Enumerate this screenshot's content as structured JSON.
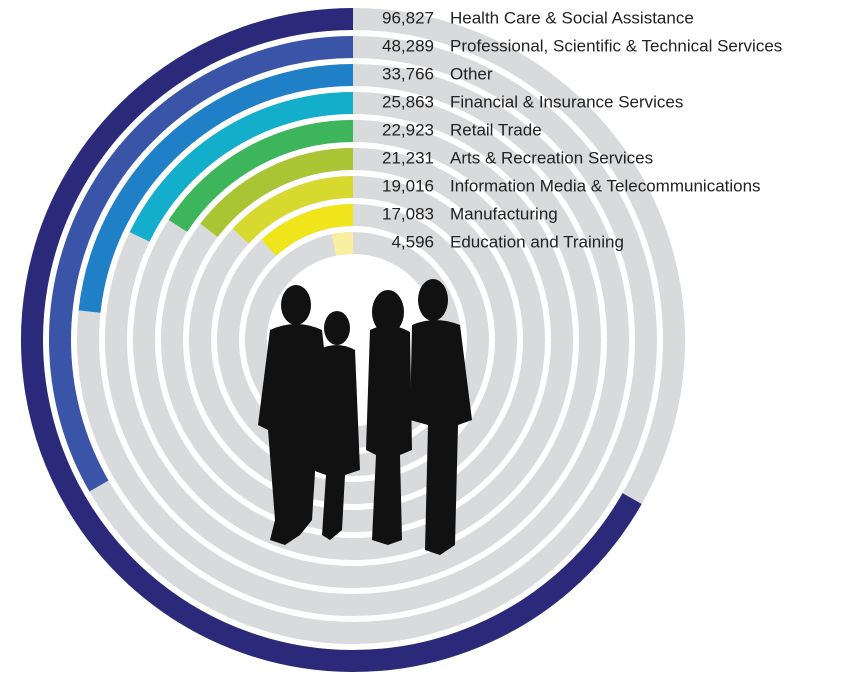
{
  "chart_data": {
    "type": "radial-bar",
    "categories": [
      "Health Care & Social Assistance",
      "Professional, Scientific & Technical Services",
      "Other",
      "Financial & Insurance Services",
      "Retail Trade",
      "Arts & Recreation Services",
      "Information Media & Telecommunications",
      "Manufacturing",
      "Education and Training"
    ],
    "values": [
      96827,
      48289,
      33766,
      25863,
      22923,
      21231,
      19016,
      17083,
      4596
    ],
    "value_labels": [
      "96,827",
      "48,289",
      "33,766",
      "25,863",
      "22,923",
      "21,231",
      "19,016",
      "17,083",
      "4,596"
    ],
    "colors": [
      "#2b2a7a",
      "#3a55a8",
      "#1f80c7",
      "#14aecd",
      "#3cb55b",
      "#aac434",
      "#d7d92e",
      "#f0e41b",
      "#f7ee9f"
    ],
    "xlim": [
      0,
      145000
    ]
  }
}
